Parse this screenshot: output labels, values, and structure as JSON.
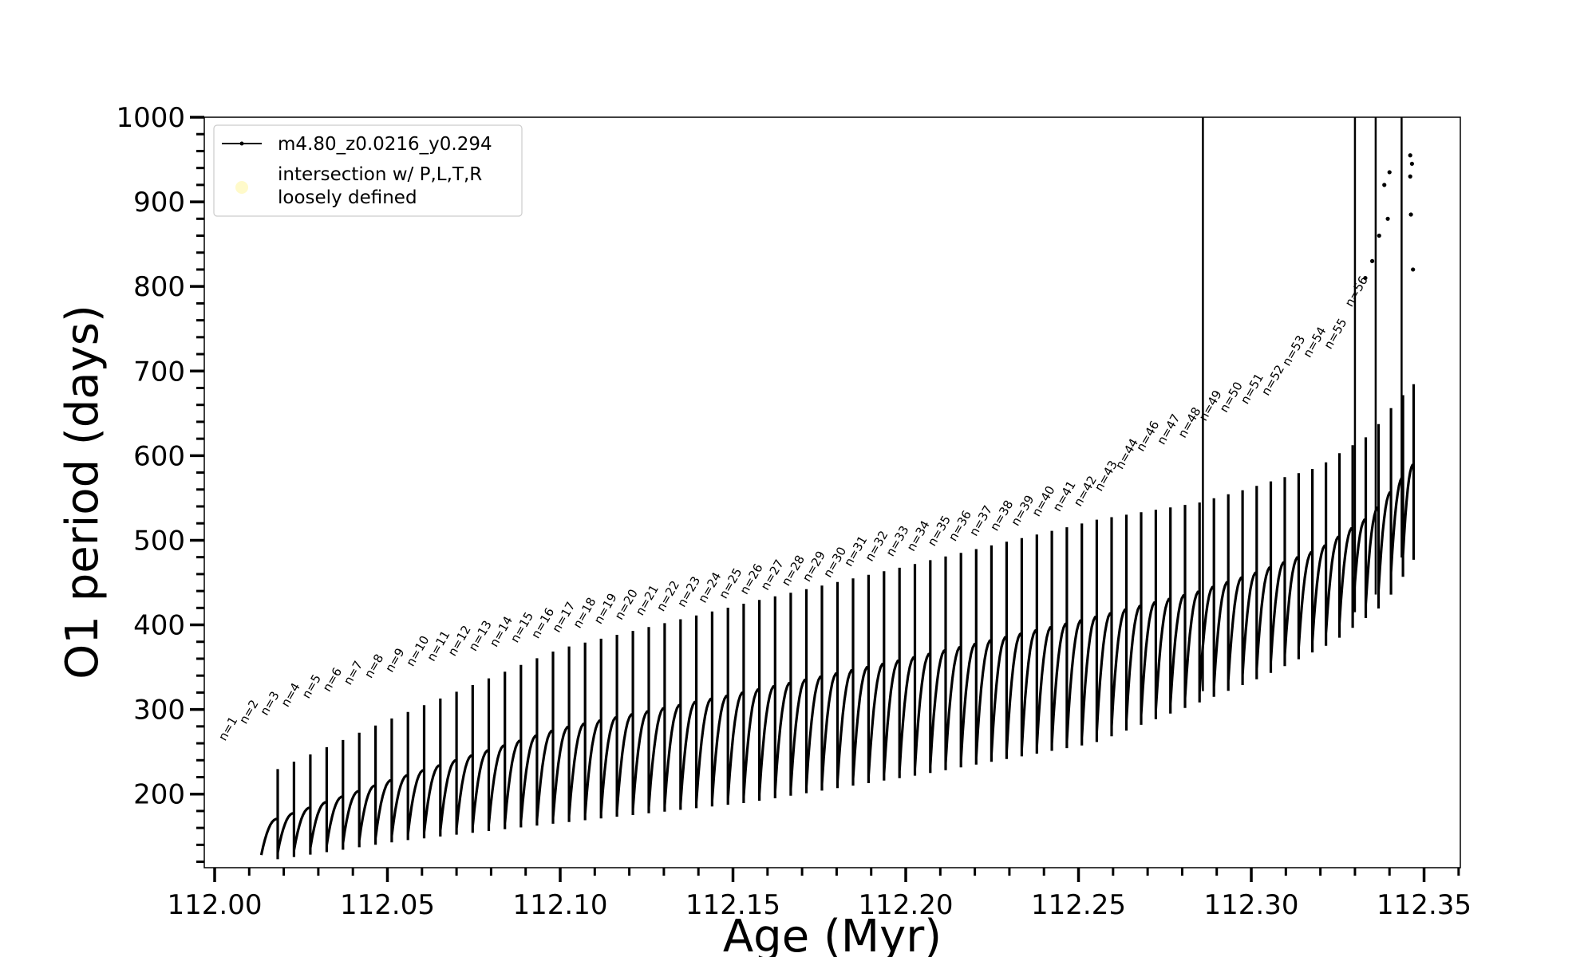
{
  "chart_data": {
    "type": "line",
    "xlabel": "Age (Myr)",
    "ylabel": "O1 period (days)",
    "xlim": [
      111.997,
      112.3605
    ],
    "ylim": [
      113,
      1000
    ],
    "xticks": [
      112.0,
      112.05,
      112.1,
      112.15,
      112.2,
      112.25,
      112.3,
      112.35
    ],
    "xtick_labels": [
      "112.00",
      "112.05",
      "112.10",
      "112.15",
      "112.20",
      "112.25",
      "112.30",
      "112.35"
    ],
    "yticks": [
      200,
      300,
      400,
      500,
      600,
      700,
      800,
      900,
      1000
    ],
    "ytick_labels": [
      "200",
      "300",
      "400",
      "500",
      "600",
      "700",
      "800",
      "900",
      "1000"
    ],
    "x_minor_step": 0.01,
    "y_minor_step": 20,
    "grid": false,
    "legend_position": "upper-left",
    "legend": [
      {
        "label": "m4.80_z0.0216_y0.294",
        "marker": "line-with-dot",
        "color": "#000000"
      },
      {
        "label": "intersection w/ P,L,T,R\nloosely defined",
        "marker": "circle",
        "color": "#fff9c4"
      }
    ],
    "series": [
      {
        "name": "m4.80_z0.0216_y0.294",
        "color": "#000000",
        "description_points": {
          "x_start": 112.0135,
          "x_end": 112.347,
          "cycle_count": 76,
          "envelope_x": [
            112.014,
            112.05,
            112.1,
            112.15,
            112.2,
            112.25,
            112.285,
            112.3,
            112.32,
            112.335,
            112.347
          ],
          "upper_envelope_y": [
            165,
            215,
            278,
            318,
            360,
            405,
            440,
            460,
            490,
            530,
            590
          ],
          "lower_envelope_y": [
            128,
            150,
            173,
            195,
            228,
            265,
            320,
            345,
            385,
            430,
            500
          ]
        },
        "spikes": [
          {
            "x": 112.286,
            "y": 1000
          },
          {
            "x": 112.33,
            "y": 1000
          },
          {
            "x": 112.336,
            "y": 1000
          },
          {
            "x": 112.3435,
            "y": 1000
          }
        ],
        "scatter_upper": [
          {
            "x": 112.3385,
            "y": 920
          },
          {
            "x": 112.34,
            "y": 935
          },
          {
            "x": 112.3395,
            "y": 880
          },
          {
            "x": 112.337,
            "y": 860
          },
          {
            "x": 112.335,
            "y": 830
          },
          {
            "x": 112.333,
            "y": 810
          },
          {
            "x": 112.346,
            "y": 955
          },
          {
            "x": 112.3465,
            "y": 945
          },
          {
            "x": 112.346,
            "y": 930
          },
          {
            "x": 112.3462,
            "y": 885
          },
          {
            "x": 112.3468,
            "y": 820
          }
        ]
      }
    ],
    "annotations": [
      {
        "text": "n=1",
        "x": 112.0565,
        "y": 262
      },
      {
        "text": "n=2",
        "x": 112.0685,
        "y": 282
      },
      {
        "text": "n=3",
        "x": 112.0745,
        "y": 292
      },
      {
        "text": "n=4",
        "x": 112.0805,
        "y": 302
      },
      {
        "text": "n=5",
        "x": 112.0865,
        "y": 312
      },
      {
        "text": "n=6",
        "x": 112.0975,
        "y": 320
      },
      {
        "text": "n=7",
        "x": 112.1035,
        "y": 328
      },
      {
        "text": "n=8",
        "x": 112.1095,
        "y": 336
      },
      {
        "text": "n=9",
        "x": 112.1155,
        "y": 343
      },
      {
        "text": "n=10",
        "x": 112.1215,
        "y": 350
      },
      {
        "text": "n=11",
        "x": 112.1275,
        "y": 356
      },
      {
        "text": "n=12",
        "x": 112.1335,
        "y": 362
      },
      {
        "text": "n=13",
        "x": 112.1395,
        "y": 368
      },
      {
        "text": "n=14",
        "x": 112.1455,
        "y": 373
      },
      {
        "text": "n=15",
        "x": 112.1515,
        "y": 378
      },
      {
        "text": "n=16",
        "x": 112.1575,
        "y": 383
      },
      {
        "text": "n=17",
        "x": 112.1655,
        "y": 390
      },
      {
        "text": "n=18",
        "x": 112.1715,
        "y": 395
      },
      {
        "text": "n=19",
        "x": 112.1775,
        "y": 400
      },
      {
        "text": "n=20",
        "x": 112.1835,
        "y": 405
      },
      {
        "text": "n=21",
        "x": 112.1895,
        "y": 410
      },
      {
        "text": "n=22",
        "x": 112.1955,
        "y": 415
      },
      {
        "text": "n=23",
        "x": 112.2015,
        "y": 420
      },
      {
        "text": "n=24",
        "x": 112.2075,
        "y": 425
      },
      {
        "text": "n=25",
        "x": 112.2135,
        "y": 430
      },
      {
        "text": "n=26",
        "x": 112.2195,
        "y": 435
      },
      {
        "text": "n=27",
        "x": 112.2255,
        "y": 440
      },
      {
        "text": "n=28",
        "x": 112.2315,
        "y": 445
      },
      {
        "text": "n=29",
        "x": 112.2375,
        "y": 450
      },
      {
        "text": "n=30",
        "x": 112.2435,
        "y": 455
      },
      {
        "text": "n=31",
        "x": 112.2565,
        "y": 468
      },
      {
        "text": "n=32",
        "x": 112.2625,
        "y": 474
      },
      {
        "text": "n=33",
        "x": 112.2685,
        "y": 480
      },
      {
        "text": "n=34",
        "x": 112.2745,
        "y": 486
      },
      {
        "text": "n=35",
        "x": 112.2805,
        "y": 492
      },
      {
        "text": "n=36",
        "x": 112.2865,
        "y": 498
      },
      {
        "text": "n=37",
        "x": 112.2925,
        "y": 504
      },
      {
        "text": "n=38",
        "x": 112.2985,
        "y": 510
      },
      {
        "text": "n=39",
        "x": 112.3045,
        "y": 516
      },
      {
        "text": "n=40",
        "x": 112.3175,
        "y": 527
      },
      {
        "text": "n=41",
        "x": 112.3235,
        "y": 533
      },
      {
        "text": "n=42",
        "x": 112.3295,
        "y": 539
      },
      {
        "text": "n=43",
        "x": 112.3385,
        "y": 557
      },
      {
        "text": "n=44",
        "x": 112.3575,
        "y": 583
      },
      {
        "text": "n=46",
        "x": 112.3705,
        "y": 604
      },
      {
        "text": "n=47",
        "x": 112.3765,
        "y": 612
      },
      {
        "text": "n=48",
        "x": 112.3825,
        "y": 620
      },
      {
        "text": "n=49",
        "x": 112.3925,
        "y": 640
      },
      {
        "text": "n=50",
        "x": 112.3975,
        "y": 650
      },
      {
        "text": "n=51",
        "x": 112.4025,
        "y": 660
      },
      {
        "text": "n=52",
        "x": 112.4095,
        "y": 670
      },
      {
        "text": "n=53",
        "x": 112.4195,
        "y": 705
      },
      {
        "text": "n=54",
        "x": 112.4255,
        "y": 715
      },
      {
        "text": "n=55",
        "x": 112.4315,
        "y": 725
      },
      {
        "text": "n=56",
        "x": 112.4445,
        "y": 775
      }
    ]
  }
}
